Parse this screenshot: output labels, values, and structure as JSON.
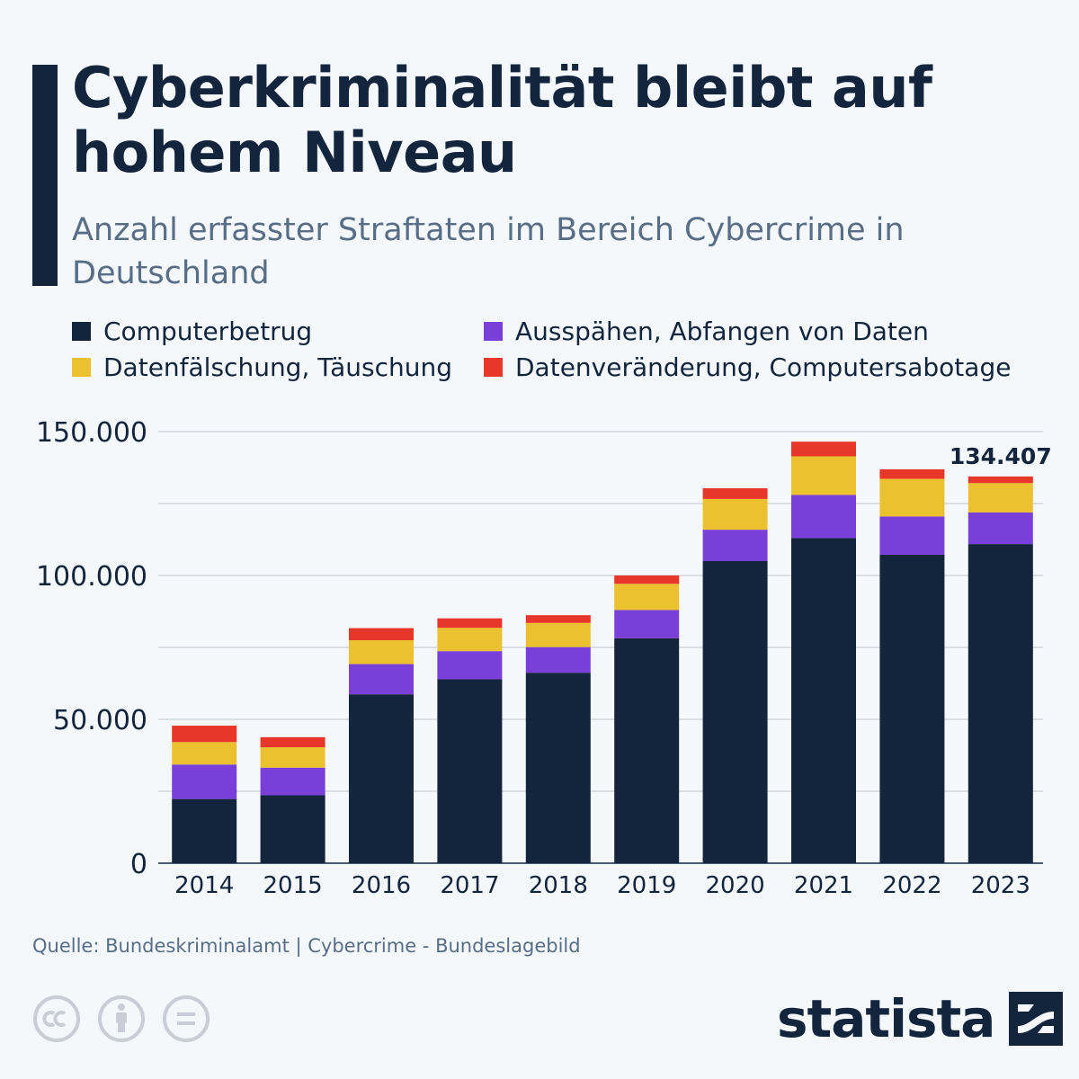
{
  "header": {
    "title": "Cyberkriminalität bleibt auf hohem Niveau",
    "subtitle": "Anzahl erfasster Straftaten im Bereich Cybercrime in Deutschland"
  },
  "colors": {
    "computerbetrug": "#13243d",
    "ausspaehen": "#7b3fd9",
    "datenfaelschung": "#ecc12f",
    "datenveraenderung": "#e9362b",
    "grid": "#c4c9d1",
    "axis_text": "#13243d"
  },
  "chart_data": {
    "type": "bar",
    "stacked": true,
    "title": "Cyberkriminalität bleibt auf hohem Niveau",
    "subtitle": "Anzahl erfasster Straftaten im Bereich Cybercrime in Deutschland",
    "xlabel": "",
    "ylabel": "",
    "ylim": [
      0,
      150000
    ],
    "yticks": [
      0,
      50000,
      100000,
      150000
    ],
    "ytick_labels": [
      "0",
      "50.000",
      "100.000",
      "150.000"
    ],
    "grid": true,
    "legend_position": "top",
    "categories": [
      "2014",
      "2015",
      "2016",
      "2017",
      "2018",
      "2019",
      "2020",
      "2021",
      "2022",
      "2023"
    ],
    "series": [
      {
        "name": "Computerbetrug",
        "color": "#13243d",
        "values": [
          22300,
          23600,
          58700,
          63900,
          66200,
          78200,
          105000,
          113000,
          107200,
          110900
        ]
      },
      {
        "name": "Ausspähen, Abfangen von Daten",
        "color": "#7b3fd9",
        "values": [
          12000,
          9600,
          10500,
          9800,
          8900,
          9800,
          10900,
          15000,
          13300,
          11000
        ]
      },
      {
        "name": "Datenfälschung, Täuschung",
        "color": "#ecc12f",
        "values": [
          7800,
          7100,
          8300,
          8100,
          8400,
          9100,
          10700,
          13400,
          13100,
          10200
        ]
      },
      {
        "name": "Datenveränderung, Computersabotage",
        "color": "#e9362b",
        "values": [
          5700,
          3500,
          4200,
          3300,
          2700,
          2900,
          3700,
          5100,
          3300,
          2307
        ]
      }
    ],
    "annotations": [
      {
        "category": "2023",
        "text": "134.407"
      }
    ]
  },
  "footer": {
    "source": "Quelle: Bundeskriminalamt | Cybercrime - Bundeslagebild",
    "license_icons": [
      "cc-icon",
      "attribution-icon",
      "no-derivatives-icon"
    ],
    "brand": "statista"
  }
}
